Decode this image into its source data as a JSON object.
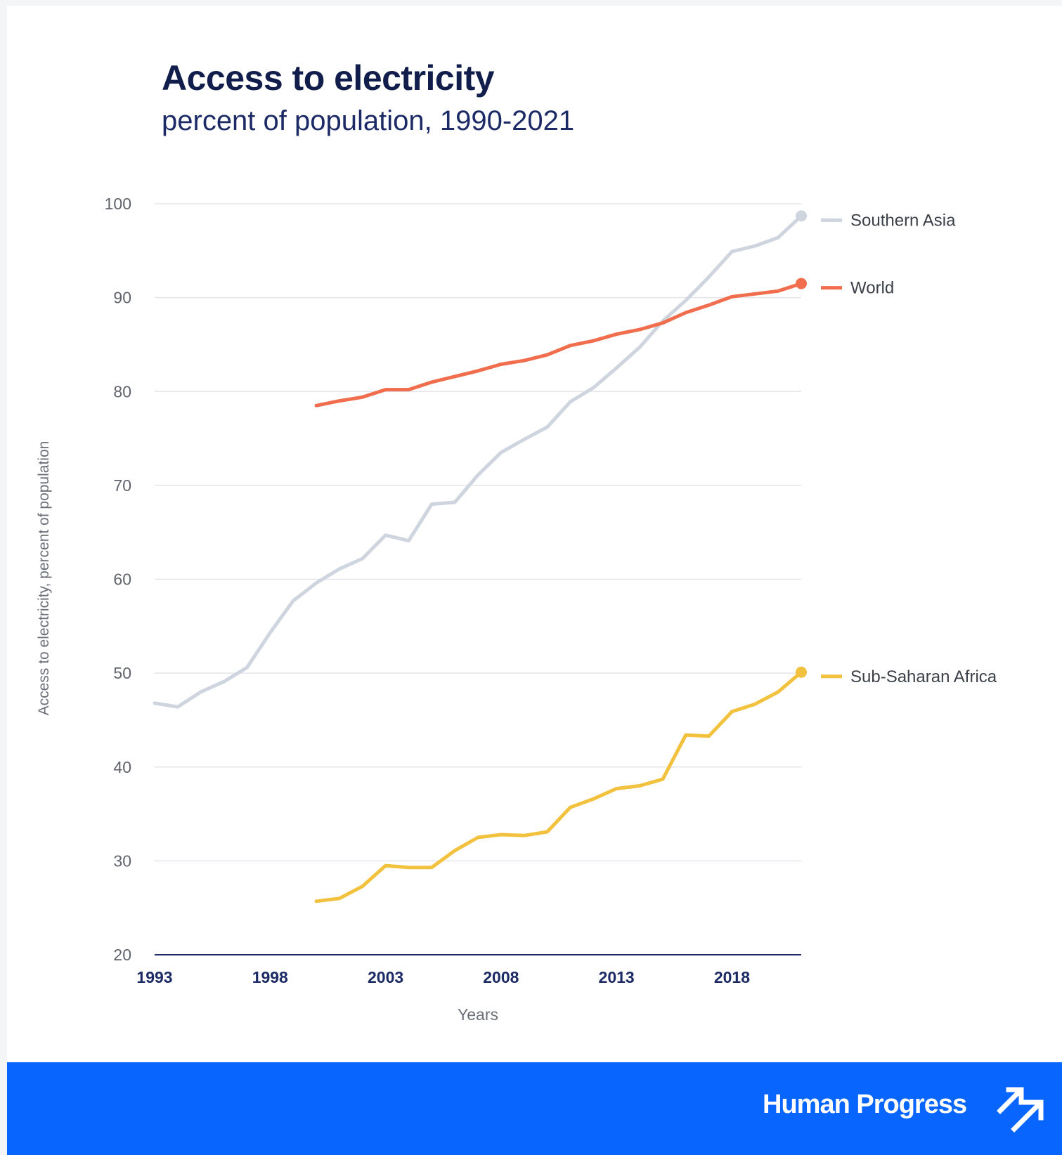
{
  "header": {
    "title": "Access to electricity",
    "subtitle": "percent of population, 1990-2021"
  },
  "footer": {
    "brand": "Human Progress",
    "logo_icon": "double-arrow-up-right-icon"
  },
  "colors": {
    "title": "#111d4a",
    "footer_bg": "#0866ff",
    "grid": "#e3e5ea",
    "axis": "#1c2a66"
  },
  "chart_data": {
    "type": "line",
    "title": "Access to electricity",
    "subtitle": "percent of population, 1990-2021",
    "xlabel": "Years",
    "ylabel": "Access to electricity, percent of population",
    "xlim": [
      1993,
      2021
    ],
    "ylim": [
      20,
      100
    ],
    "xticks": [
      1993,
      1998,
      2003,
      2008,
      2013,
      2018
    ],
    "yticks": [
      20,
      30,
      40,
      50,
      60,
      70,
      80,
      90,
      100
    ],
    "grid": true,
    "legend": "right, labels at line ends",
    "series": [
      {
        "name": "Southern Asia",
        "color": "#cfd5de",
        "x": [
          1993,
          1994,
          1995,
          1996,
          1997,
          1998,
          1999,
          2000,
          2001,
          2002,
          2003,
          2004,
          2005,
          2006,
          2007,
          2008,
          2009,
          2010,
          2011,
          2012,
          2013,
          2014,
          2015,
          2016,
          2017,
          2018,
          2019,
          2020,
          2021
        ],
        "y": [
          46.8,
          46.4,
          48.0,
          49.1,
          50.6,
          54.3,
          57.7,
          59.6,
          61.1,
          62.2,
          64.7,
          64.1,
          68.0,
          68.2,
          71.1,
          73.5,
          74.9,
          76.2,
          78.9,
          80.4,
          82.5,
          84.7,
          87.5,
          89.7,
          92.2,
          94.9,
          95.5,
          96.4,
          98.7
        ]
      },
      {
        "name": "World",
        "color": "#f06e4e",
        "x": [
          2000,
          2001,
          2002,
          2003,
          2004,
          2005,
          2006,
          2007,
          2008,
          2009,
          2010,
          2011,
          2012,
          2013,
          2014,
          2015,
          2016,
          2017,
          2018,
          2019,
          2020,
          2021
        ],
        "y": [
          78.5,
          79.0,
          79.4,
          80.2,
          80.2,
          81.0,
          81.6,
          82.2,
          82.9,
          83.3,
          83.9,
          84.9,
          85.4,
          86.1,
          86.6,
          87.3,
          88.4,
          89.2,
          90.1,
          90.4,
          90.7,
          91.5
        ]
      },
      {
        "name": "Sub-Saharan Africa",
        "color": "#f2c23f",
        "x": [
          2000,
          2001,
          2002,
          2003,
          2004,
          2005,
          2006,
          2007,
          2008,
          2009,
          2010,
          2011,
          2012,
          2013,
          2014,
          2015,
          2016,
          2017,
          2018,
          2019,
          2020,
          2021
        ],
        "y": [
          25.7,
          26.0,
          27.3,
          29.5,
          29.3,
          29.3,
          31.1,
          32.5,
          32.8,
          32.7,
          33.1,
          35.7,
          36.6,
          37.7,
          38.0,
          38.7,
          43.4,
          43.3,
          45.9,
          46.7,
          48.0,
          50.1
        ]
      }
    ]
  }
}
